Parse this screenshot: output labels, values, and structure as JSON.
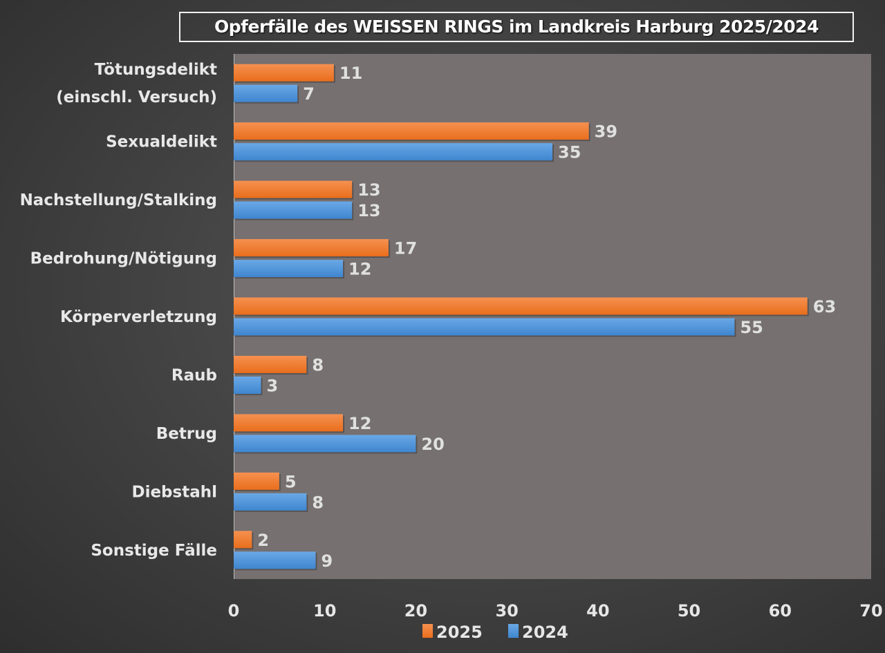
{
  "chart_data": {
    "type": "bar",
    "orientation": "horizontal",
    "title": "Opferfälle des WEISSEN RINGS im Landkreis Harburg 2025/2024",
    "categories": [
      [
        "Tötungsdelikt",
        "(einschl. Versuch)"
      ],
      [
        "Sexualdelikt"
      ],
      [
        "Nachstellung/Stalking"
      ],
      [
        "Bedrohung/Nötigung"
      ],
      [
        "Körperverletzung"
      ],
      [
        "Raub"
      ],
      [
        "Betrug"
      ],
      [
        "Diebstahl"
      ],
      [
        "Sonstige Fälle"
      ]
    ],
    "series": [
      {
        "name": "2025",
        "color": "#ef7a2a",
        "values": [
          11,
          39,
          13,
          17,
          63,
          8,
          12,
          5,
          2
        ]
      },
      {
        "name": "2024",
        "color": "#4f94d8",
        "values": [
          7,
          35,
          13,
          12,
          55,
          3,
          20,
          8,
          9
        ]
      }
    ],
    "xlim": [
      0,
      70
    ],
    "xticks": [
      "0",
      "10",
      "20",
      "30",
      "40",
      "50",
      "60",
      "70"
    ],
    "xlabel": "",
    "ylabel": "",
    "grid": false,
    "legend_position": "bottom",
    "plot_background": "#767070"
  }
}
